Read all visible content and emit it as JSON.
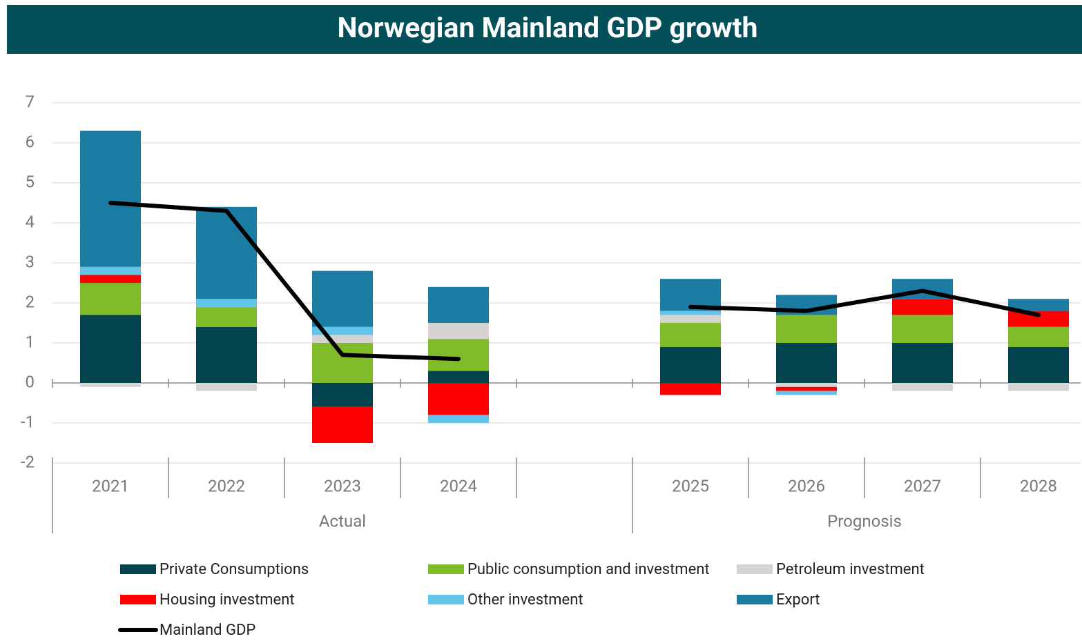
{
  "chart_data": {
    "type": "bar",
    "stacked": true,
    "title": "Norwegian Mainland GDP growth",
    "categories": [
      "2021",
      "2022",
      "2023",
      "2024",
      null,
      "2025",
      "2026",
      "2027",
      "2028"
    ],
    "groups": [
      "Actual",
      "Prognosis"
    ],
    "ylim": [
      -2,
      7
    ],
    "yticks": [
      -2,
      -1,
      0,
      1,
      2,
      3,
      4,
      5,
      6,
      7
    ],
    "grid": true,
    "series": [
      {
        "name": "Private Consumptions",
        "color": "#03434d",
        "values": [
          1.7,
          1.4,
          -0.6,
          0.3,
          null,
          0.9,
          1.0,
          1.0,
          0.9
        ]
      },
      {
        "name": "Public consumption and investment",
        "color": "#80bb2a",
        "values": [
          0.8,
          0.5,
          1.0,
          0.8,
          null,
          0.6,
          0.7,
          0.7,
          0.5
        ]
      },
      {
        "name": "Petroleum investment",
        "color": "#d6d4d2",
        "values": [
          -0.1,
          -0.2,
          0.2,
          0.4,
          null,
          0.2,
          -0.1,
          -0.2,
          -0.2
        ]
      },
      {
        "name": "Housing investment",
        "color": "#ff0000",
        "values": [
          0.2,
          0,
          -0.9,
          -0.8,
          null,
          -0.3,
          -0.1,
          0.4,
          0.4
        ]
      },
      {
        "name": "Other investment",
        "color": "#63c4ea",
        "values": [
          0.2,
          0.2,
          0.2,
          -0.2,
          null,
          0.1,
          -0.1,
          0,
          0
        ]
      },
      {
        "name": "Export",
        "color": "#1a7ca3",
        "values": [
          3.4,
          2.3,
          1.4,
          0.9,
          null,
          0.8,
          0.5,
          0.5,
          0.3
        ]
      },
      {
        "name": "Mainland GDP",
        "type": "line",
        "color": "#000000",
        "values": [
          4.5,
          4.3,
          0.7,
          0.6,
          null,
          1.9,
          1.8,
          2.3,
          1.7
        ]
      }
    ]
  }
}
